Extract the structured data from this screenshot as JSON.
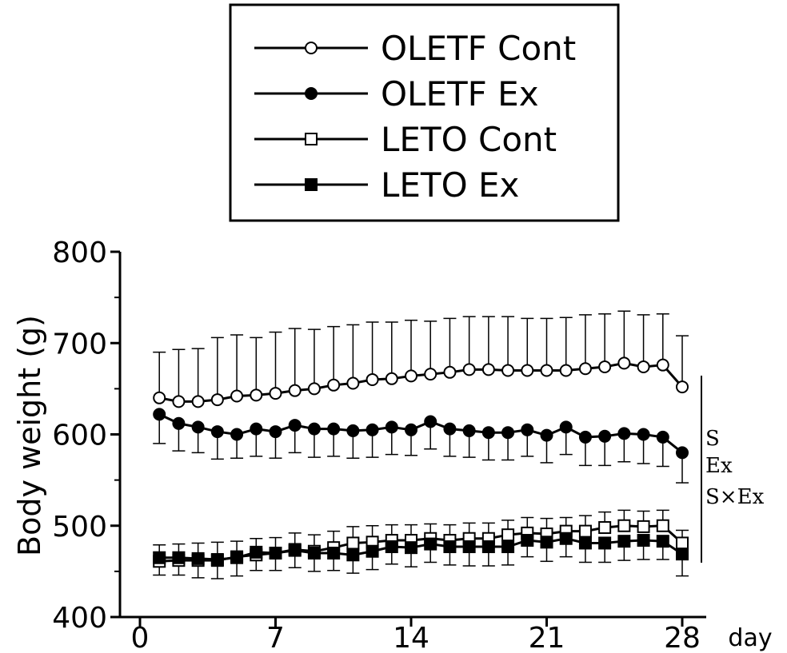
{
  "chart_data": {
    "type": "line",
    "title": "",
    "xlabel": "day",
    "ylabel": "Body weight (g)",
    "xlim": [
      0,
      28
    ],
    "ylim": [
      400,
      800
    ],
    "xticks": [
      0,
      7,
      14,
      21,
      28
    ],
    "yticks": [
      400,
      500,
      600,
      700,
      800
    ],
    "grid": false,
    "legend_position": "top-center",
    "x": [
      1,
      2,
      3,
      4,
      5,
      6,
      7,
      8,
      9,
      10,
      11,
      12,
      13,
      14,
      15,
      16,
      17,
      18,
      19,
      20,
      21,
      22,
      23,
      24,
      25,
      26,
      27,
      28
    ],
    "series": [
      {
        "name": "OLETF Cont",
        "marker": "open-circle",
        "values": [
          640,
          636,
          636,
          638,
          642,
          643,
          645,
          648,
          650,
          654,
          656,
          660,
          661,
          664,
          666,
          668,
          671,
          671,
          670,
          670,
          670,
          670,
          672,
          674,
          678,
          674,
          676,
          652
        ],
        "error": [
          50,
          57,
          58,
          68,
          67,
          63,
          67,
          68,
          65,
          64,
          64,
          63,
          62,
          61,
          58,
          59,
          58,
          58,
          59,
          57,
          57,
          58,
          59,
          58,
          57,
          57,
          56,
          56
        ]
      },
      {
        "name": "OLETF Ex",
        "marker": "filled-circle",
        "values": [
          622,
          612,
          608,
          603,
          600,
          606,
          603,
          610,
          606,
          606,
          604,
          605,
          608,
          605,
          614,
          606,
          604,
          602,
          602,
          605,
          599,
          608,
          597,
          598,
          601,
          600,
          597,
          580
        ],
        "error": [
          32,
          30,
          28,
          30,
          26,
          30,
          29,
          30,
          31,
          30,
          30,
          30,
          30,
          28,
          30,
          30,
          29,
          30,
          30,
          29,
          30,
          30,
          31,
          32,
          31,
          32,
          32,
          33
        ]
      },
      {
        "name": "LETO Cont",
        "marker": "open-square",
        "values": [
          461,
          462,
          462,
          462,
          466,
          468,
          470,
          474,
          472,
          476,
          481,
          482,
          484,
          484,
          486,
          484,
          486,
          486,
          490,
          492,
          491,
          494,
          494,
          498,
          500,
          499,
          500,
          481
        ],
        "error": [
          18,
          18,
          19,
          20,
          17,
          18,
          17,
          18,
          18,
          18,
          18,
          18,
          17,
          17,
          16,
          17,
          17,
          17,
          16,
          17,
          17,
          15,
          17,
          17,
          17,
          17,
          17,
          14
        ]
      },
      {
        "name": "LETO Ex",
        "marker": "filled-square",
        "values": [
          465,
          465,
          464,
          463,
          465,
          471,
          470,
          473,
          470,
          470,
          468,
          472,
          477,
          476,
          480,
          477,
          477,
          477,
          477,
          484,
          482,
          486,
          481,
          481,
          483,
          484,
          483,
          469
        ],
        "error": [
          19,
          19,
          21,
          21,
          20,
          20,
          19,
          19,
          20,
          19,
          20,
          20,
          19,
          21,
          20,
          20,
          21,
          21,
          20,
          18,
          21,
          20,
          21,
          21,
          21,
          21,
          20,
          24
        ]
      }
    ],
    "annotations": [
      "S",
      "Ex",
      "S×Ex"
    ]
  }
}
